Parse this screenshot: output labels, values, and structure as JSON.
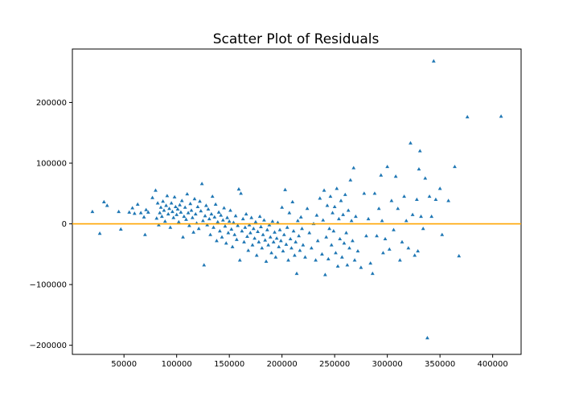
{
  "chart_data": {
    "type": "scatter",
    "title": "Scatter Plot of Residuals",
    "xlabel": "",
    "ylabel": "",
    "xlim": [
      1000,
      427000
    ],
    "ylim": [
      -215000,
      288000
    ],
    "xticks": [
      50000,
      100000,
      150000,
      200000,
      250000,
      300000,
      350000,
      400000
    ],
    "xtick_labels": [
      "50000",
      "100000",
      "150000",
      "200000",
      "250000",
      "300000",
      "350000",
      "400000"
    ],
    "yticks": [
      -200000,
      -100000,
      0,
      100000,
      200000
    ],
    "ytick_labels": [
      "−200000",
      "−100000",
      "0",
      "100000",
      "200000"
    ],
    "grid": false,
    "reference_line": {
      "y": 0,
      "color": "#ffa500"
    },
    "marker": "triangle-up",
    "point_color": "#1f77b4",
    "points": [
      [
        20000,
        20000
      ],
      [
        27000,
        -16000
      ],
      [
        31000,
        36000
      ],
      [
        34000,
        30000
      ],
      [
        45000,
        20000
      ],
      [
        47000,
        -9000
      ],
      [
        55000,
        19000
      ],
      [
        58000,
        26000
      ],
      [
        60000,
        17000
      ],
      [
        63000,
        32000
      ],
      [
        66000,
        18000
      ],
      [
        69000,
        11000
      ],
      [
        70000,
        -18000
      ],
      [
        71000,
        23000
      ],
      [
        73000,
        19000
      ],
      [
        77000,
        43000
      ],
      [
        80000,
        55000
      ],
      [
        81000,
        9000
      ],
      [
        82000,
        34000
      ],
      [
        83000,
        -2000
      ],
      [
        84000,
        18000
      ],
      [
        85000,
        27000
      ],
      [
        86000,
        12000
      ],
      [
        87000,
        37000
      ],
      [
        88000,
        22000
      ],
      [
        89000,
        4000
      ],
      [
        90000,
        30000
      ],
      [
        91000,
        46000
      ],
      [
        92000,
        16000
      ],
      [
        93000,
        25000
      ],
      [
        94000,
        -6000
      ],
      [
        95000,
        34000
      ],
      [
        96000,
        20000
      ],
      [
        97000,
        10000
      ],
      [
        98000,
        44000
      ],
      [
        99000,
        28000
      ],
      [
        100000,
        15000
      ],
      [
        101000,
        24000
      ],
      [
        102000,
        3000
      ],
      [
        103000,
        31000
      ],
      [
        104000,
        19000
      ],
      [
        105000,
        38000
      ],
      [
        106000,
        -22000
      ],
      [
        107000,
        12000
      ],
      [
        108000,
        27000
      ],
      [
        109000,
        7000
      ],
      [
        110000,
        49000
      ],
      [
        111000,
        18000
      ],
      [
        112000,
        -3000
      ],
      [
        113000,
        33000
      ],
      [
        114000,
        22000
      ],
      [
        115000,
        10000
      ],
      [
        116000,
        -14000
      ],
      [
        117000,
        41000
      ],
      [
        118000,
        16000
      ],
      [
        119000,
        1000
      ],
      [
        120000,
        28000
      ],
      [
        121000,
        -8000
      ],
      [
        122000,
        37000
      ],
      [
        123000,
        21000
      ],
      [
        124000,
        66000
      ],
      [
        125000,
        5000
      ],
      [
        126000,
        -68000
      ],
      [
        127000,
        13000
      ],
      [
        128000,
        30000
      ],
      [
        129000,
        -2000
      ],
      [
        130000,
        24000
      ],
      [
        131000,
        8000
      ],
      [
        132000,
        -18000
      ],
      [
        133000,
        16000
      ],
      [
        134000,
        45000
      ],
      [
        135000,
        -6000
      ],
      [
        136000,
        11000
      ],
      [
        137000,
        32000
      ],
      [
        138000,
        -28000
      ],
      [
        139000,
        3000
      ],
      [
        140000,
        19000
      ],
      [
        141000,
        -12000
      ],
      [
        142000,
        14000
      ],
      [
        143000,
        -22000
      ],
      [
        144000,
        6000
      ],
      [
        145000,
        26000
      ],
      [
        146000,
        -4000
      ],
      [
        147000,
        -32000
      ],
      [
        148000,
        10000
      ],
      [
        149000,
        -15000
      ],
      [
        150000,
        4000
      ],
      [
        151000,
        22000
      ],
      [
        152000,
        -9000
      ],
      [
        153000,
        -38000
      ],
      [
        154000,
        2000
      ],
      [
        155000,
        -18000
      ],
      [
        156000,
        13000
      ],
      [
        157000,
        -26000
      ],
      [
        158000,
        -3000
      ],
      [
        159000,
        57000
      ],
      [
        160000,
        -60000
      ],
      [
        161000,
        50000
      ],
      [
        162000,
        -12000
      ],
      [
        163000,
        8000
      ],
      [
        164000,
        -30000
      ],
      [
        165000,
        -6000
      ],
      [
        166000,
        16000
      ],
      [
        167000,
        -21000
      ],
      [
        168000,
        -44000
      ],
      [
        169000,
        -2000
      ],
      [
        170000,
        -15000
      ],
      [
        171000,
        10000
      ],
      [
        172000,
        -35000
      ],
      [
        173000,
        -8000
      ],
      [
        174000,
        -24000
      ],
      [
        175000,
        3000
      ],
      [
        176000,
        -52000
      ],
      [
        177000,
        -13000
      ],
      [
        178000,
        -30000
      ],
      [
        179000,
        12000
      ],
      [
        180000,
        -5000
      ],
      [
        181000,
        -40000
      ],
      [
        182000,
        -18000
      ],
      [
        183000,
        6000
      ],
      [
        184000,
        -27000
      ],
      [
        185000,
        -62000
      ],
      [
        186000,
        -10000
      ],
      [
        187000,
        -35000
      ],
      [
        188000,
        -2000
      ],
      [
        189000,
        -22000
      ],
      [
        190000,
        -48000
      ],
      [
        191000,
        4000
      ],
      [
        192000,
        -30000
      ],
      [
        193000,
        -14000
      ],
      [
        194000,
        -55000
      ],
      [
        195000,
        -24000
      ],
      [
        196000,
        2000
      ],
      [
        197000,
        -38000
      ],
      [
        198000,
        -10000
      ],
      [
        199000,
        -28000
      ],
      [
        200000,
        27000
      ],
      [
        201000,
        -45000
      ],
      [
        202000,
        -18000
      ],
      [
        203000,
        56000
      ],
      [
        204000,
        -34000
      ],
      [
        205000,
        -6000
      ],
      [
        206000,
        -60000
      ],
      [
        207000,
        18000
      ],
      [
        208000,
        -25000
      ],
      [
        209000,
        -40000
      ],
      [
        210000,
        36000
      ],
      [
        211000,
        -12000
      ],
      [
        212000,
        -52000
      ],
      [
        213000,
        -30000
      ],
      [
        214000,
        -82000
      ],
      [
        215000,
        5000
      ],
      [
        216000,
        -20000
      ],
      [
        217000,
        -44000
      ],
      [
        218000,
        11000
      ],
      [
        219000,
        -8000
      ],
      [
        220000,
        -35000
      ],
      [
        222000,
        -55000
      ],
      [
        224000,
        25000
      ],
      [
        226000,
        -15000
      ],
      [
        228000,
        -40000
      ],
      [
        230000,
        0
      ],
      [
        232000,
        -60000
      ],
      [
        233000,
        14000
      ],
      [
        234000,
        -28000
      ],
      [
        236000,
        42000
      ],
      [
        238000,
        -50000
      ],
      [
        239000,
        6000
      ],
      [
        240000,
        55000
      ],
      [
        241000,
        -84000
      ],
      [
        242000,
        -22000
      ],
      [
        243000,
        30000
      ],
      [
        244000,
        -58000
      ],
      [
        245000,
        -8000
      ],
      [
        246000,
        45000
      ],
      [
        247000,
        -35000
      ],
      [
        248000,
        18000
      ],
      [
        249000,
        -12000
      ],
      [
        250000,
        28000
      ],
      [
        251000,
        -48000
      ],
      [
        252000,
        58000
      ],
      [
        253000,
        -70000
      ],
      [
        254000,
        8000
      ],
      [
        255000,
        -25000
      ],
      [
        256000,
        38000
      ],
      [
        257000,
        -55000
      ],
      [
        258000,
        15000
      ],
      [
        259000,
        -32000
      ],
      [
        260000,
        48000
      ],
      [
        261000,
        -15000
      ],
      [
        262000,
        -68000
      ],
      [
        263000,
        22000
      ],
      [
        264000,
        -40000
      ],
      [
        265000,
        72000
      ],
      [
        266000,
        5000
      ],
      [
        267000,
        -28000
      ],
      [
        268000,
        92000
      ],
      [
        269000,
        -60000
      ],
      [
        270000,
        12000
      ],
      [
        272000,
        -45000
      ],
      [
        275000,
        -72000
      ],
      [
        278000,
        50000
      ],
      [
        280000,
        -20000
      ],
      [
        282000,
        8000
      ],
      [
        284000,
        -65000
      ],
      [
        286000,
        -82000
      ],
      [
        288000,
        50000
      ],
      [
        290000,
        -20000
      ],
      [
        292000,
        25000
      ],
      [
        294000,
        80000
      ],
      [
        295000,
        5000
      ],
      [
        296000,
        -48000
      ],
      [
        298000,
        -25000
      ],
      [
        300000,
        94000
      ],
      [
        302000,
        -42000
      ],
      [
        304000,
        38000
      ],
      [
        306000,
        -10000
      ],
      [
        308000,
        78000
      ],
      [
        310000,
        25000
      ],
      [
        312000,
        -60000
      ],
      [
        314000,
        -30000
      ],
      [
        316000,
        45000
      ],
      [
        318000,
        5000
      ],
      [
        320000,
        -40000
      ],
      [
        322000,
        133000
      ],
      [
        324000,
        15000
      ],
      [
        326000,
        -52000
      ],
      [
        328000,
        40000
      ],
      [
        329000,
        -45000
      ],
      [
        330000,
        90000
      ],
      [
        331000,
        120000
      ],
      [
        332000,
        12000
      ],
      [
        334000,
        -8000
      ],
      [
        336000,
        75000
      ],
      [
        338000,
        -188000
      ],
      [
        340000,
        45000
      ],
      [
        342000,
        12000
      ],
      [
        344000,
        268000
      ],
      [
        346000,
        40000
      ],
      [
        350000,
        58000
      ],
      [
        352000,
        -18000
      ],
      [
        358000,
        38000
      ],
      [
        364000,
        94000
      ],
      [
        368000,
        -53000
      ],
      [
        376000,
        176000
      ],
      [
        408000,
        177000
      ]
    ]
  }
}
